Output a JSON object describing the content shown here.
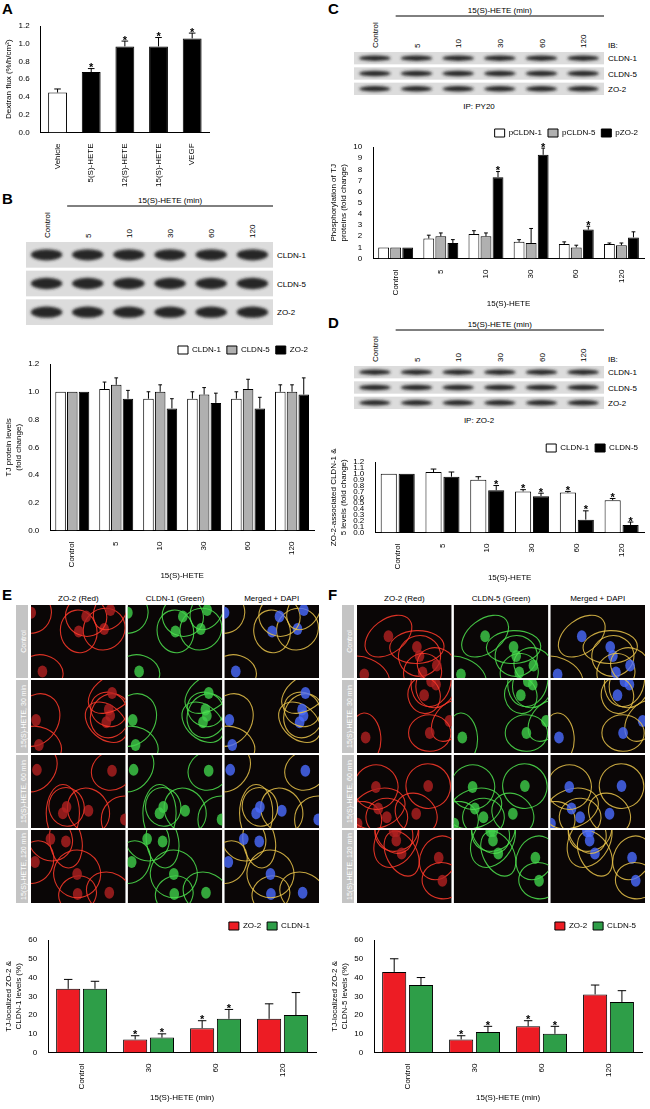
{
  "panel_labels": [
    "A",
    "B",
    "C",
    "D",
    "E",
    "F"
  ],
  "chart_data": [
    {
      "type": "bar",
      "ylabel": "Dextran flux (%/h/cm²)",
      "categories": [
        "Vehicle",
        "5(S)-HETE",
        "12(S)-HETE",
        "15(S)-HETE",
        "VEGF"
      ],
      "values": [
        0.45,
        0.68,
        0.97,
        0.97,
        1.06
      ],
      "errors": [
        0.04,
        0.04,
        0.06,
        0.1,
        0.06
      ],
      "significance": [
        null,
        "*",
        "*",
        "*",
        "*"
      ],
      "colors": [
        "#ffffff",
        "#000000",
        "#000000",
        "#000000",
        "#000000"
      ],
      "ylim": [
        0,
        1.2
      ],
      "yticks": [
        {
          "value": 0,
          "label": "0.0"
        },
        0.2,
        0.4,
        0.6,
        0.8,
        {
          "value": 1,
          "label": "1.0"
        },
        1.2
      ],
      "grid": false
    },
    {
      "type": "bar",
      "ylabel": "TJ protein levels (fold change)",
      "xlabel": "15(S)-HETE",
      "categories": [
        "Control",
        "5",
        "10",
        "30",
        "60",
        "120"
      ],
      "series": [
        {
          "name": "CLDN-1",
          "color": "#ffffff",
          "values": [
            1,
            1.02,
            0.95,
            0.95,
            0.95,
            1.0
          ],
          "errors": [
            0,
            0.05,
            0.05,
            0.05,
            0.05,
            0.05
          ]
        },
        {
          "name": "CLDN-5",
          "color": "#b0b0b0",
          "values": [
            1,
            1.05,
            1.0,
            0.98,
            1.02,
            1.0
          ],
          "errors": [
            0,
            0.05,
            0.05,
            0.05,
            0.07,
            0.05
          ]
        },
        {
          "name": "ZO-2",
          "color": "#000000",
          "values": [
            1,
            0.95,
            0.88,
            0.92,
            0.88,
            0.98
          ],
          "errors": [
            0,
            0.06,
            0.07,
            0.07,
            0.08,
            0.12
          ]
        }
      ],
      "ylim": [
        0,
        1.2
      ],
      "yticks": [
        {
          "value": 0,
          "label": "0.0"
        },
        0.2,
        0.4,
        0.6,
        0.8,
        {
          "value": 1,
          "label": "1.0"
        },
        1.2
      ],
      "grid": false,
      "legend": "upper right"
    },
    {
      "type": "bar",
      "ylabel": "Phosphorylation of TJ proteins (fold change)",
      "xlabel": "15(S)-HETE",
      "categories": [
        "Control",
        "5",
        "10",
        "30",
        "60",
        "120"
      ],
      "series": [
        {
          "name": "pCLDN-1",
          "color": "#ffffff",
          "values": [
            1,
            1.8,
            2.2,
            1.5,
            1.3,
            1.3
          ],
          "errors": [
            0,
            0.3,
            0.3,
            0.2,
            0.2,
            0.1
          ],
          "significance": [
            null,
            null,
            null,
            null,
            null,
            null
          ]
        },
        {
          "name": "pCLDN-5",
          "color": "#b0b0b0",
          "values": [
            1,
            2.0,
            2.0,
            1.4,
            1.0,
            1.2
          ],
          "errors": [
            0,
            0.3,
            0.3,
            1.3,
            0.2,
            0.2
          ],
          "significance": [
            null,
            null,
            null,
            null,
            null,
            null
          ]
        },
        {
          "name": "pZO-2",
          "color": "#000000",
          "values": [
            1,
            1.4,
            7.3,
            9.3,
            2.6,
            1.9
          ],
          "errors": [
            0,
            0.3,
            0.5,
            0.6,
            0.3,
            0.5
          ],
          "significance": [
            null,
            null,
            "*",
            "*",
            "*",
            null
          ]
        }
      ],
      "ylim": [
        0,
        10
      ],
      "yticks": [
        0,
        1,
        2,
        3,
        4,
        5,
        6,
        7,
        8,
        9,
        10
      ],
      "grid": false,
      "legend": "upper right"
    },
    {
      "type": "bar",
      "ylabel": "ZO-2-associated CLDN-1 & 5 levels (fold change)",
      "xlabel": "15(S)-HETE",
      "categories": [
        "Control",
        "5",
        "10",
        "30",
        "60",
        "120"
      ],
      "series": [
        {
          "name": "CLDN-1",
          "color": "#ffffff",
          "values": [
            1,
            1.03,
            0.9,
            0.7,
            0.68,
            0.55
          ],
          "errors": [
            0,
            0.05,
            0.05,
            0.03,
            0.02,
            0.03
          ],
          "significance": [
            null,
            null,
            null,
            "*",
            "*",
            "*"
          ]
        },
        {
          "name": "CLDN-5",
          "color": "#000000",
          "values": [
            1,
            0.95,
            0.72,
            0.62,
            0.22,
            0.13
          ],
          "errors": [
            0,
            0.08,
            0.08,
            0.05,
            0.15,
            0.05
          ],
          "significance": [
            null,
            null,
            "*",
            "*",
            "*",
            "*"
          ]
        }
      ],
      "ylim": [
        0,
        1.2
      ],
      "yticks": [
        {
          "value": 0,
          "label": "0.0"
        },
        0.1,
        0.2,
        0.3,
        0.4,
        0.5,
        0.6,
        0.7,
        0.8,
        0.9,
        {
          "value": 1,
          "label": "1.0"
        },
        1.1,
        1.2
      ],
      "grid": false,
      "legend": "upper right"
    },
    {
      "type": "bar",
      "ylabel": "TJ-localized ZO-2 & CLDN-1 levels (%)",
      "xlabel": "15(S)-HETE (min)",
      "categories": [
        "Control",
        "30",
        "60",
        "120"
      ],
      "series": [
        {
          "name": "ZO-2",
          "color": "#ed1c24",
          "values": [
            34,
            7,
            13,
            18
          ],
          "errors": [
            5,
            2,
            4,
            8
          ],
          "significance": [
            null,
            "*",
            "*",
            null
          ]
        },
        {
          "name": "CLDN-1",
          "color": "#2e9e48",
          "values": [
            34,
            8,
            18,
            20
          ],
          "errors": [
            4,
            2,
            5,
            12
          ],
          "significance": [
            null,
            "*",
            "*",
            null
          ]
        }
      ],
      "ylim": [
        0,
        60
      ],
      "yticks": [
        0,
        10,
        20,
        30,
        40,
        50,
        60
      ],
      "grid": false,
      "legend": "upper right"
    },
    {
      "type": "bar",
      "ylabel": "TJ-localized ZO-2 & CLDN-5 levels (%)",
      "xlabel": "15(S)-HETE (min)",
      "categories": [
        "Control",
        "30",
        "60",
        "120"
      ],
      "series": [
        {
          "name": "ZO-2",
          "color": "#ed1c24",
          "values": [
            43,
            7,
            14,
            31
          ],
          "errors": [
            7,
            2,
            3,
            5
          ],
          "significance": [
            null,
            "*",
            "*",
            null
          ]
        },
        {
          "name": "CLDN-5",
          "color": "#2e9e48",
          "values": [
            36,
            11,
            10,
            27
          ],
          "errors": [
            4,
            3,
            4,
            6
          ],
          "significance": [
            null,
            "*",
            "*",
            null
          ]
        }
      ],
      "ylim": [
        0,
        60
      ],
      "yticks": [
        0,
        10,
        20,
        30,
        40,
        50,
        60
      ],
      "grid": false,
      "legend": "upper right"
    }
  ],
  "blots": [
    {
      "header": "15(S)-HETE (min)",
      "lanes": [
        "Control",
        "5",
        "10",
        "30",
        "60",
        "120"
      ],
      "rows": [
        "CLDN-1",
        "CLDN-5",
        "ZO-2"
      ]
    },
    {
      "header": "15(S)-HETE (min)",
      "lanes": [
        "Control",
        "5",
        "10",
        "30",
        "60",
        "120"
      ],
      "rows": [
        "CLDN-1",
        "CLDN-5",
        "ZO-2"
      ],
      "ib": "IB:",
      "ip": "IP: PY20"
    },
    {
      "header": "15(S)-HETE (min)",
      "lanes": [
        "Control",
        "5",
        "10",
        "30",
        "60",
        "120"
      ],
      "rows": [
        "CLDN-1",
        "CLDN-5",
        "ZO-2"
      ],
      "ib": "IB:",
      "ip": "IP: ZO-2"
    }
  ],
  "micrographs": [
    {
      "columns": [
        "ZO-2 (Red)",
        "CLDN-1 (Green)",
        "Merged + DAPI"
      ],
      "rows": [
        "Control",
        "15(S)-HETE, 30 min",
        "15(S)-HETE, 60 min",
        "15(S)-HETE, 120 min"
      ]
    },
    {
      "columns": [
        "ZO-2 (Red)",
        "CLDN-5 (Green)",
        "Merged + DAPI"
      ],
      "rows": [
        "Control",
        "15(S)-HETE, 30 min",
        "15(S)-HETE, 60 min",
        "15(S)-HETE, 120 min"
      ]
    }
  ]
}
